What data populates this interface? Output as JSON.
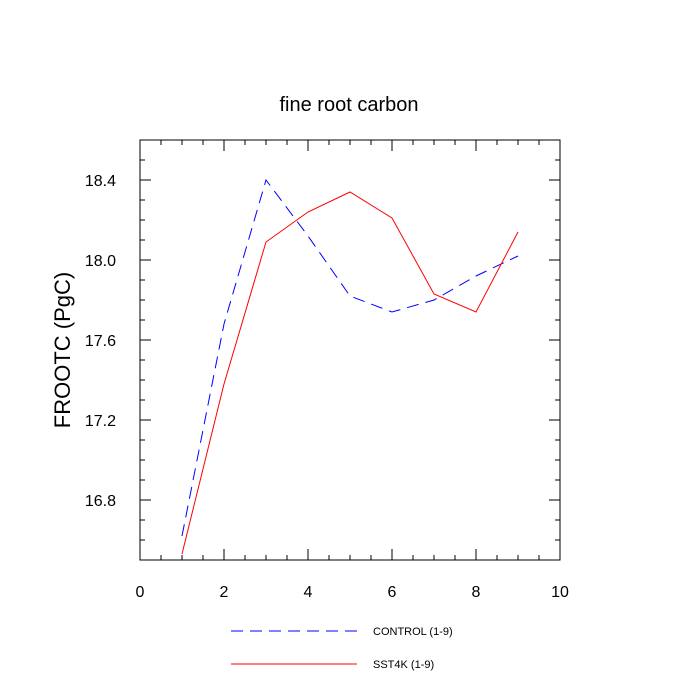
{
  "chart_data": {
    "type": "line",
    "title": "fine root carbon",
    "xlabel": "",
    "ylabel": "FROOTC  (PgC)",
    "xlim": [
      0,
      10
    ],
    "ylim": [
      16.5,
      18.6
    ],
    "x_ticks": [
      0,
      2,
      4,
      6,
      8,
      10
    ],
    "x_tick_labels": [
      "0",
      "2",
      "4",
      "6",
      "8",
      "10"
    ],
    "y_ticks": [
      16.8,
      17.2,
      17.6,
      18.0,
      18.4
    ],
    "y_tick_labels": [
      "16.8",
      "17.2",
      "17.6",
      "18.0",
      "18.4"
    ],
    "grid": false,
    "legend_position": "bottom",
    "series": [
      {
        "name": "CONTROL (1-9)",
        "color": "#0000ff",
        "style": "dashed",
        "x": [
          1,
          2,
          3,
          4,
          5,
          6,
          7,
          8,
          9
        ],
        "y": [
          16.62,
          17.68,
          18.4,
          18.12,
          17.82,
          17.74,
          17.8,
          17.92,
          18.02
        ]
      },
      {
        "name": "SST4K (1-9)",
        "color": "#ff0000",
        "style": "solid",
        "x": [
          1,
          2,
          3,
          4,
          5,
          6,
          7,
          8,
          9
        ],
        "y": [
          16.53,
          17.38,
          18.09,
          18.24,
          18.34,
          18.21,
          17.83,
          17.74,
          18.14
        ]
      }
    ]
  }
}
